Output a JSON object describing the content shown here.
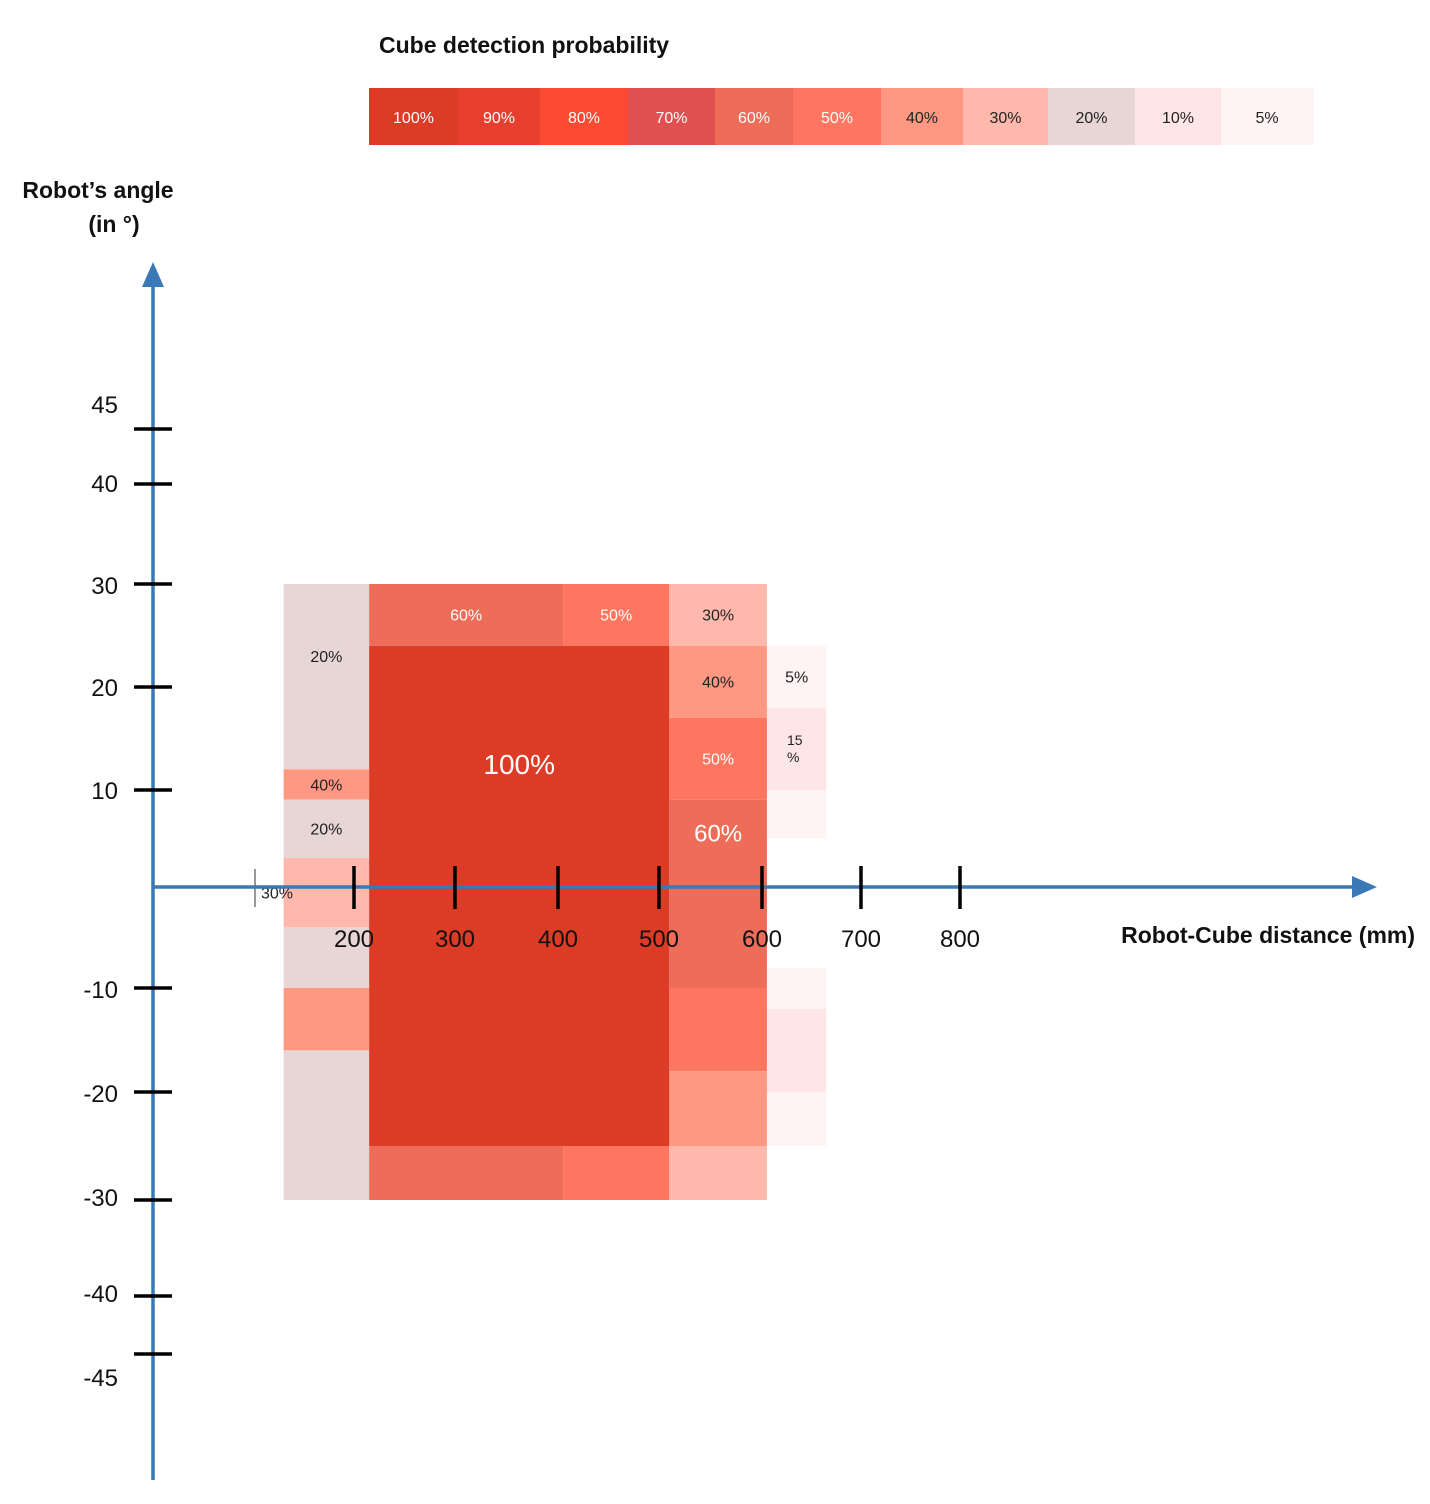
{
  "chart_data": {
    "type": "heatmap",
    "legend": {
      "title": "Cube detection probability",
      "placement": "top",
      "entries": [
        {
          "label": "100%",
          "value": 100,
          "color": "#DC3B26",
          "text_color": "#ffffff"
        },
        {
          "label": "90%",
          "value": 90,
          "color": "#E73F2D",
          "text_color": "#ffffff"
        },
        {
          "label": "80%",
          "value": 80,
          "color": "#FC4932",
          "text_color": "#ffffff"
        },
        {
          "label": "70%",
          "value": 70,
          "color": "#DF504E",
          "text_color": "#ffffff"
        },
        {
          "label": "60%",
          "value": 60,
          "color": "#EE6D59",
          "text_color": "#ffffff"
        },
        {
          "label": "50%",
          "value": 50,
          "color": "#FF7660",
          "text_color": "#ffffff"
        },
        {
          "label": "40%",
          "value": 40,
          "color": "#FF9882",
          "text_color": "#222222"
        },
        {
          "label": "30%",
          "value": 30,
          "color": "#FFB8AB",
          "text_color": "#222222"
        },
        {
          "label": "20%",
          "value": 20,
          "color": "#E8D5D5",
          "text_color": "#222222"
        },
        {
          "label": "10%",
          "value": 10,
          "color": "#FFE6E6",
          "text_color": "#222222"
        },
        {
          "label": "5%",
          "value": 5,
          "color": "#FFF4F4",
          "text_color": "#222222"
        }
      ]
    },
    "x_axis": {
      "label": "Robot-Cube distance (mm)",
      "ticks": [
        200,
        300,
        400,
        500,
        600,
        700,
        800
      ]
    },
    "y_axis": {
      "label_lines": [
        "Robot’s angle",
        "(in °)"
      ],
      "ticks": [
        45,
        40,
        30,
        20,
        10,
        -10,
        -20,
        -30,
        -40,
        -45
      ]
    },
    "cells": [
      {
        "x0": 130,
        "x1": 215,
        "y0": 24,
        "y1": 30,
        "value": 20,
        "label": ""
      },
      {
        "x0": 130,
        "x1": 215,
        "y0": 12,
        "y1": 24,
        "value": 20,
        "label": "20%"
      },
      {
        "x0": 130,
        "x1": 215,
        "y0": 9,
        "y1": 12,
        "value": 40,
        "label": "40%"
      },
      {
        "x0": 130,
        "x1": 215,
        "y0": 3,
        "y1": 9,
        "value": 20,
        "label": "20%"
      },
      {
        "x0": 130,
        "x1": 215,
        "y0": -4,
        "y1": 3,
        "value": 30,
        "label": "30%"
      },
      {
        "x0": 130,
        "x1": 215,
        "y0": -10,
        "y1": -4,
        "value": 20,
        "label": ""
      },
      {
        "x0": 130,
        "x1": 215,
        "y0": -16,
        "y1": -10,
        "value": 40,
        "label": ""
      },
      {
        "x0": 130,
        "x1": 215,
        "y0": -30,
        "y1": -16,
        "value": 20,
        "label": ""
      },
      {
        "x0": 215,
        "x1": 405,
        "y0": 24,
        "y1": 30,
        "value": 60,
        "label": "60%"
      },
      {
        "x0": 405,
        "x1": 510,
        "y0": 24,
        "y1": 30,
        "value": 50,
        "label": "50%"
      },
      {
        "x0": 215,
        "x1": 510,
        "y0": -25,
        "y1": 24,
        "value": 100,
        "label": "100%"
      },
      {
        "x0": 215,
        "x1": 405,
        "y0": -30,
        "y1": -25,
        "value": 60,
        "label": ""
      },
      {
        "x0": 405,
        "x1": 510,
        "y0": -30,
        "y1": -25,
        "value": 50,
        "label": ""
      },
      {
        "x0": 510,
        "x1": 605,
        "y0": 24,
        "y1": 30,
        "value": 30,
        "label": "30%"
      },
      {
        "x0": 510,
        "x1": 605,
        "y0": 17,
        "y1": 24,
        "value": 40,
        "label": "40%"
      },
      {
        "x0": 510,
        "x1": 605,
        "y0": 9,
        "y1": 17,
        "value": 50,
        "label": "50%"
      },
      {
        "x0": 510,
        "x1": 605,
        "y0": -10,
        "y1": 9,
        "value": 60,
        "label": "60%"
      },
      {
        "x0": 510,
        "x1": 605,
        "y0": -18,
        "y1": -10,
        "value": 50,
        "label": ""
      },
      {
        "x0": 510,
        "x1": 605,
        "y0": -25,
        "y1": -18,
        "value": 40,
        "label": ""
      },
      {
        "x0": 510,
        "x1": 605,
        "y0": -30,
        "y1": -25,
        "value": 30,
        "label": ""
      },
      {
        "x0": 605,
        "x1": 665,
        "y0": 18,
        "y1": 24,
        "value": 5,
        "label": "5%"
      },
      {
        "x0": 605,
        "x1": 665,
        "y0": 10,
        "y1": 18,
        "value": 15,
        "label": "15\n%"
      },
      {
        "x0": 605,
        "x1": 665,
        "y0": 5,
        "y1": 10,
        "value": 5,
        "label": ""
      },
      {
        "x0": 605,
        "x1": 665,
        "y0": -12,
        "y1": -8,
        "value": 5,
        "label": ""
      },
      {
        "x0": 605,
        "x1": 665,
        "y0": -20,
        "y1": -12,
        "value": 10,
        "label": ""
      },
      {
        "x0": 605,
        "x1": 665,
        "y0": -25,
        "y1": -20,
        "value": 5,
        "label": ""
      }
    ]
  }
}
